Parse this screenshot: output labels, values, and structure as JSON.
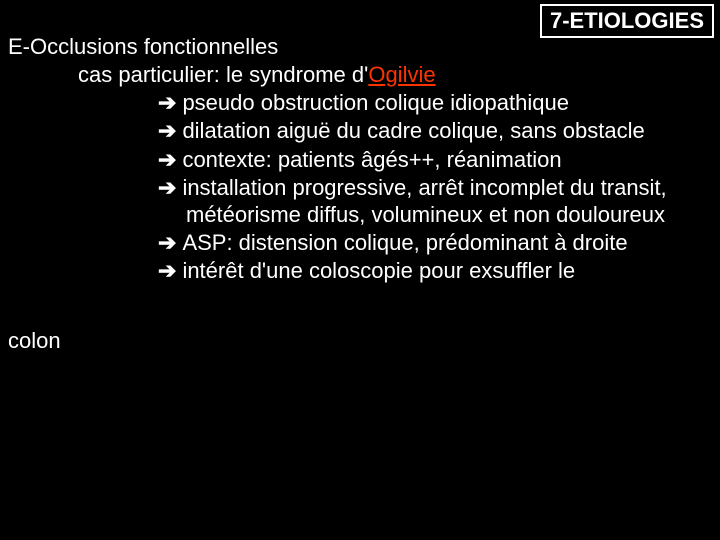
{
  "header": {
    "title": "7-ETIOLOGIES"
  },
  "section": {
    "title": "E-Occlusions fonctionnelles",
    "sub_prefix": "cas particulier: le syndrome d'",
    "sub_highlight": "Ogilvie"
  },
  "arrow": "➔",
  "bullets": {
    "b1": "pseudo obstruction colique idiopathique",
    "b2": "dilatation aiguë du cadre colique, sans obstacle",
    "b3": "contexte: patients âgés++, réanimation",
    "b4": "installation progressive, arrêt incomplet du transit, météorisme diffus, volumineux et non douloureux",
    "b5": "ASP: distension colique, prédominant à droite",
    "b6": "intérêt d'une coloscopie pour exsuffler le"
  },
  "footer": "colon",
  "colors": {
    "background": "#000000",
    "text": "#ffffff",
    "highlight": "#ff3300",
    "border": "#ffffff"
  },
  "typography": {
    "body_font": "Comic Sans MS",
    "body_size_pt": 17,
    "header_size_pt": 17
  }
}
